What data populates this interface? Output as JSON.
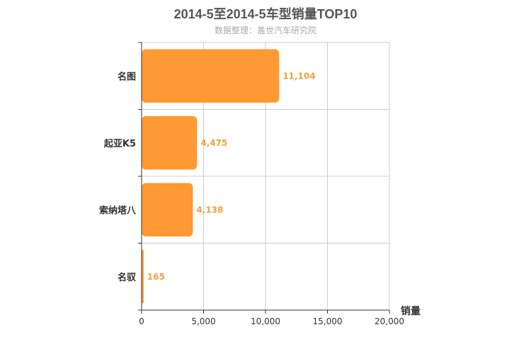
{
  "chart_data": {
    "type": "bar",
    "orientation": "horizontal",
    "title": "2014-5至2014-5车型销量TOP10",
    "subtitle": "数据整理：盖世汽车研究院",
    "xlabel": "销量",
    "ylabel": "",
    "categories": [
      "名图",
      "起亚K5",
      "索纳塔八",
      "名驭"
    ],
    "series": [
      {
        "values": [
          11104,
          4475,
          4138,
          165
        ]
      }
    ],
    "data_labels": [
      "11,104",
      "4,475",
      "4,138",
      "165"
    ],
    "xlim": [
      0,
      20000
    ],
    "xticks": [
      0,
      5000,
      10000,
      15000,
      20000
    ],
    "xtick_labels": [
      "0",
      "5,000",
      "10,000",
      "15,000",
      "20,000"
    ],
    "grid": true,
    "legend": "none",
    "colors": {
      "bar": "#ff9933",
      "bar_border": "#ff9933",
      "data_label": "#f0a040",
      "title": "#555555",
      "subtitle": "#aaaaaa",
      "axis": "#333333",
      "grid": "#cccccc",
      "category_label": "#333333"
    }
  }
}
